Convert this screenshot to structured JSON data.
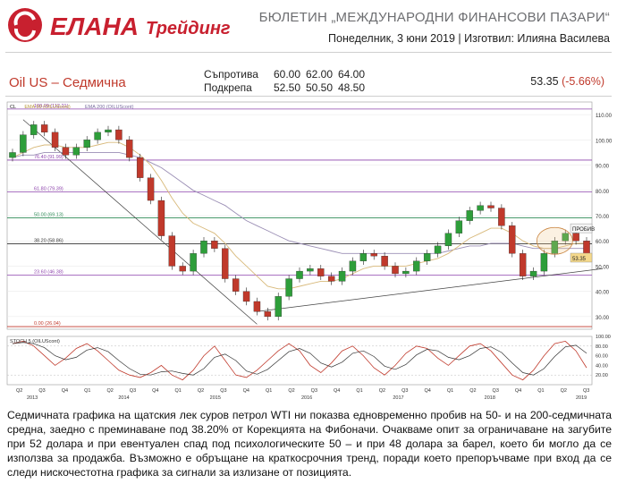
{
  "header": {
    "brand_main": "ЕЛАНА",
    "brand_sub": "Трейдинг",
    "bulletin_title": "БЮЛЕТИН „МЕЖДУНАРОДНИ ФИНАНСОВИ ПАЗАРИ“",
    "date_author": "Понеделник, 3 юни 2019 | Изготвил: Илияна Василева",
    "accent_color": "#c0392b",
    "logo_color": "#c8202f"
  },
  "instrument": {
    "name": "Oil US – Седмична",
    "last_price": "53.35",
    "change": "(-5.66%)"
  },
  "levels": {
    "resistance_label": "Съпротива",
    "resistance": [
      "60.00",
      "62.00",
      "64.00"
    ],
    "support_label": "Подкрепа",
    "support": [
      "52.50",
      "50.50",
      "48.50"
    ]
  },
  "chart_data": {
    "type": "candlestick",
    "legend": [
      "CL",
      "EMA 50 (OILUScont)",
      "EMA 200 (OILUScont)"
    ],
    "ylim": [
      25,
      115
    ],
    "y_ticks": [
      30,
      40,
      50,
      60,
      70,
      80,
      90,
      100,
      110
    ],
    "x_tick_labels": [
      "Q2",
      "Q3",
      "Q4",
      "Q1",
      "Q2",
      "Q3",
      "Q4",
      "Q1",
      "Q2",
      "Q3",
      "Q4",
      "Q1",
      "Q2",
      "Q3",
      "Q4",
      "Q1",
      "Q2",
      "Q3",
      "Q4",
      "Q1",
      "Q2",
      "Q3",
      "Q4",
      "Q1",
      "Q2",
      "Q3"
    ],
    "year_labels": [
      "2013",
      "2014",
      "2015",
      "2016",
      "2017",
      "2018",
      "2019"
    ],
    "close_series": [
      95,
      102,
      106,
      103,
      97,
      94,
      97,
      100,
      103,
      104,
      100,
      93,
      85,
      76,
      62,
      50,
      48,
      55,
      60,
      57,
      45,
      40,
      36,
      32,
      30,
      38,
      45,
      48,
      49,
      46,
      44,
      48,
      52,
      55,
      54,
      50,
      47,
      48,
      52,
      55,
      58,
      63,
      68,
      72,
      74,
      73,
      66,
      55,
      46,
      48,
      55,
      60,
      63,
      60,
      53.35
    ],
    "ema50": [
      93,
      95,
      97,
      98,
      98,
      97,
      97,
      97,
      98,
      99,
      99,
      97,
      94,
      90,
      84,
      77,
      71,
      67,
      65,
      63,
      59,
      54,
      50,
      46,
      42,
      41,
      41,
      42,
      43,
      44,
      44,
      45,
      47,
      49,
      50,
      50,
      50,
      50,
      51,
      52,
      53,
      55,
      58,
      61,
      63,
      65,
      65,
      63,
      60,
      58,
      57,
      57,
      58,
      59,
      59
    ],
    "ema200": [
      93,
      94,
      94,
      95,
      95,
      95,
      95,
      95,
      95,
      95,
      95,
      94,
      93,
      91,
      89,
      86,
      83,
      80,
      78,
      76,
      74,
      71,
      68,
      66,
      64,
      62,
      60,
      59,
      58,
      57,
      56,
      55,
      55,
      55,
      55,
      55,
      55,
      55,
      55,
      55,
      55,
      56,
      57,
      58,
      58,
      59,
      59,
      59,
      58,
      57,
      57,
      57,
      57,
      57,
      57
    ],
    "fibonacci": [
      {
        "label": "100.00 (112.21)",
        "value": 112.21
      },
      {
        "label": "76.40 (91.99)",
        "value": 91.99
      },
      {
        "label": "61.80 (79.39)",
        "value": 79.39
      },
      {
        "label": "50.00 (69.13)",
        "value": 69.13
      },
      {
        "label": "38.20 (58.86)",
        "value": 58.86
      },
      {
        "label": "23.60 (46.38)",
        "value": 46.38
      },
      {
        "label": "0.00 (26.04)",
        "value": 26.04
      }
    ],
    "right_tags": [
      {
        "label": "ПРОБИВ",
        "value": 65
      },
      {
        "label": "53.35",
        "value": 53.35
      }
    ],
    "stochastic": {
      "label": "STOCH 5 (OILUScont)",
      "ylim": [
        0,
        100
      ],
      "y_ticks": [
        20,
        40,
        60,
        80,
        100
      ],
      "k": [
        85,
        90,
        80,
        60,
        40,
        55,
        75,
        85,
        70,
        50,
        30,
        20,
        15,
        25,
        40,
        20,
        10,
        30,
        60,
        80,
        50,
        20,
        15,
        30,
        50,
        70,
        85,
        70,
        40,
        25,
        45,
        70,
        80,
        60,
        35,
        20,
        40,
        65,
        80,
        75,
        55,
        40,
        60,
        80,
        85,
        70,
        45,
        20,
        10,
        30,
        60,
        85,
        90,
        70,
        35
      ]
    },
    "annotation": "circle around recent breakout"
  },
  "description": "Седмичната графика на щатския лек суров петрол WTI ни показва едновременно пробив на 50- и на 200-седмичната средна, заедно с преминаване под 38.20% от Корекцията на Фибоначи. Очакваме опит за ограничаване на загубите при 52 долара и при евентуален спад под психологическите 50 – и при 48 долара за барел, което би могло да се използва за продажба. Възможно е обръщане на краткосрочния тренд, поради което препоръчваме при вход да се следи нискочестотна графика за сигнали за излизане от позицията."
}
